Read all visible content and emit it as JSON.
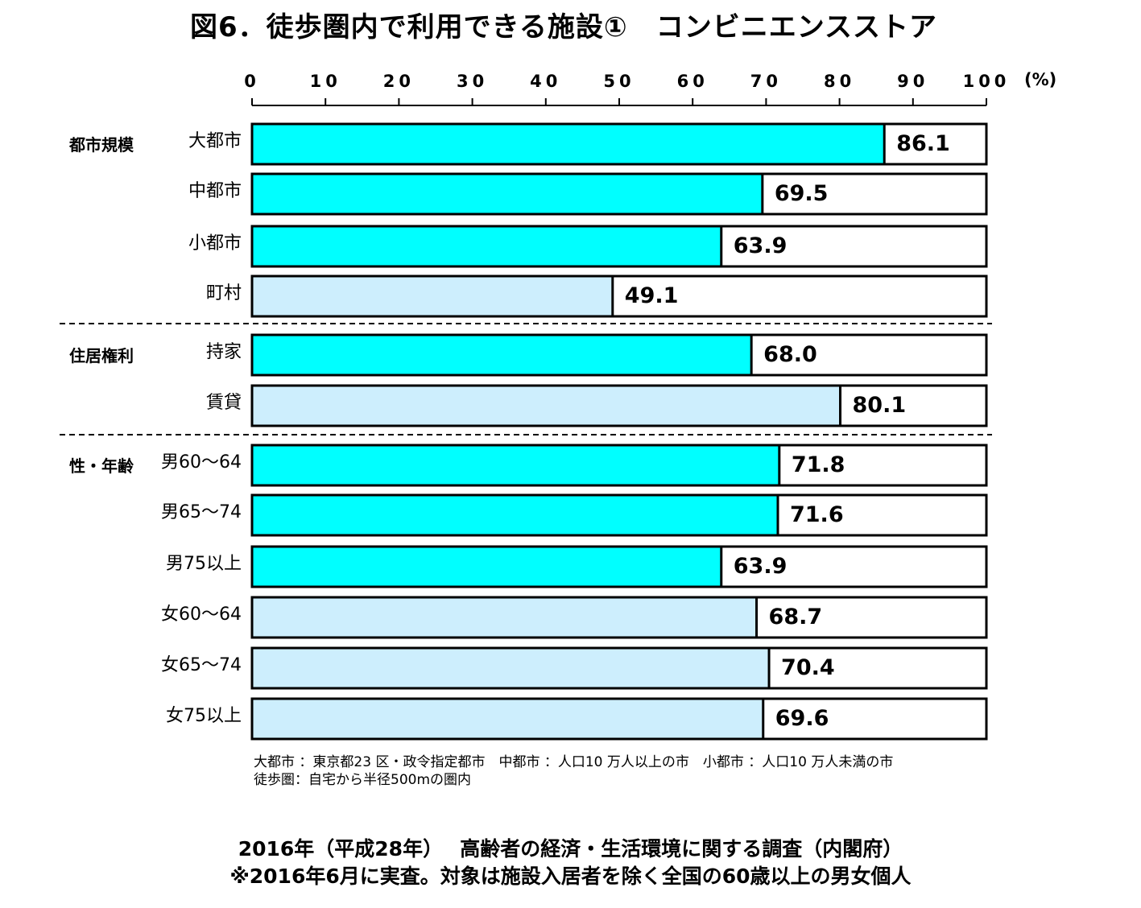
{
  "title": "図6．徒歩圏内で利用できる施設①　コンビニエンスストア",
  "chart_data": {
    "type": "bar",
    "orientation": "horizontal",
    "xlim": [
      0,
      100
    ],
    "xticks": [
      "0",
      "10",
      "20",
      "30",
      "40",
      "50",
      "60",
      "70",
      "80",
      "90",
      "100"
    ],
    "unit": "(%)",
    "colors": {
      "highlight": "#00ffff",
      "normal": "#cdeefd",
      "border": "#000000"
    },
    "groups": [
      {
        "label": "都市規模",
        "rows": [
          {
            "label": "大都市",
            "value": 86.1,
            "value_label": "86.1",
            "highlight": true
          },
          {
            "label": "中都市",
            "value": 69.5,
            "value_label": "69.5",
            "highlight": true
          },
          {
            "label": "小都市",
            "value": 63.9,
            "value_label": "63.9",
            "highlight": true
          },
          {
            "label": "町村",
            "value": 49.1,
            "value_label": "49.1",
            "highlight": false
          }
        ]
      },
      {
        "label": "住居権利",
        "rows": [
          {
            "label": "持家",
            "value": 68.0,
            "value_label": "68.0",
            "highlight": true
          },
          {
            "label": "賃貸",
            "value": 80.1,
            "value_label": "80.1",
            "highlight": false
          }
        ]
      },
      {
        "label": "性・年齢",
        "rows": [
          {
            "label": "男60～64",
            "value": 71.8,
            "value_label": "71.8",
            "highlight": true
          },
          {
            "label": "男65～74",
            "value": 71.6,
            "value_label": "71.6",
            "highlight": true
          },
          {
            "label": "男75以上",
            "value": 63.9,
            "value_label": "63.9",
            "highlight": true
          },
          {
            "label": "女60～64",
            "value": 68.7,
            "value_label": "68.7",
            "highlight": false
          },
          {
            "label": "女65～74",
            "value": 70.4,
            "value_label": "70.4",
            "highlight": false
          },
          {
            "label": "女75以上",
            "value": 69.6,
            "value_label": "69.6",
            "highlight": false
          }
        ]
      }
    ]
  },
  "notes": {
    "line1": "大都市 ：東京都23 区・政令指定都市　中都市 ：人口10 万人以上の市　小都市 ：人口10 万人未満の市",
    "line2": "徒歩圏：自宅から半径500mの圏内"
  },
  "source": {
    "line1": "2016年（平成28年）　 高齢者の経済・生活環境に関する調査（内閣府）",
    "line2": "※2016年6月に実査。対象は施設入居者を除く全国の60歳以上の男女個人"
  }
}
